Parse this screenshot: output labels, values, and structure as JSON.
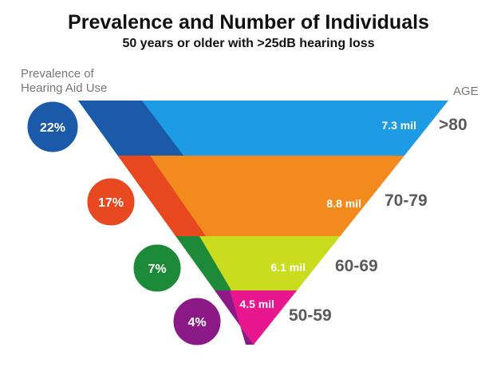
{
  "header": {
    "title": "Prevalence and Number of Individuals",
    "subtitle": "50 years or older with >25dB hearing loss"
  },
  "labels": {
    "prevalence_line1": "Prevalence of",
    "prevalence_line2": "Hearing Aid  Use",
    "age": "AGE"
  },
  "chart_data": {
    "type": "funnel",
    "categories": [
      ">80",
      "70-79",
      "60-69",
      "50-59"
    ],
    "series": [
      {
        "name": "Number of Individuals",
        "values": [
          "7.3 mil",
          "8.8 mil",
          "6.1 mil",
          "4.5 mil"
        ]
      },
      {
        "name": "Prevalence of Hearing Aid Use",
        "values": [
          "22%",
          "17%",
          "7%",
          "4%"
        ]
      }
    ],
    "colors": {
      "segments": [
        "#1e9be5",
        "#f28a1e",
        "#c9dc1d",
        "#e8168f"
      ],
      "dark_segments": [
        "#1a5aa8",
        "#e8481f",
        "#1d8a3a",
        "#8c1a86"
      ],
      "text_light": "#ffffff",
      "age_text": "#5a5a5a"
    }
  }
}
